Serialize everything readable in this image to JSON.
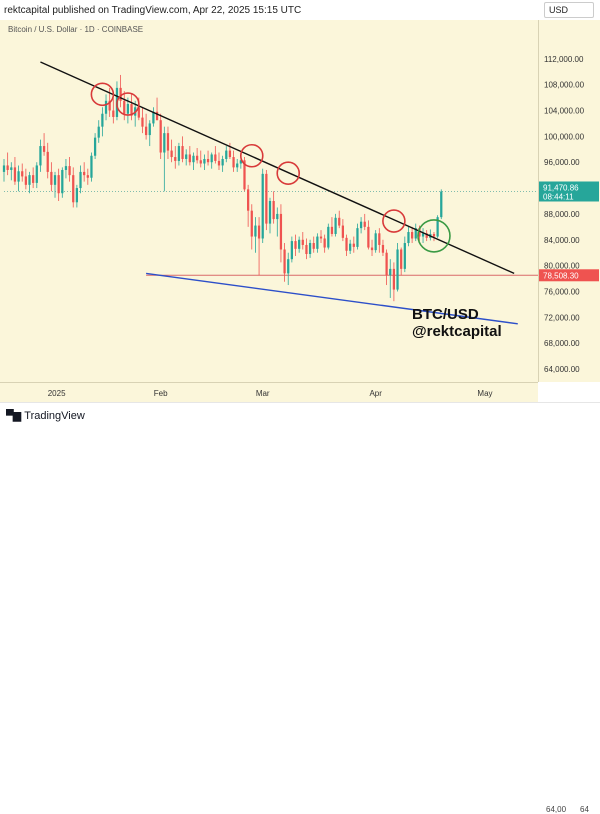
{
  "header": {
    "published_text": "rektcapital published on TradingView.com, Apr 22, 2025 15:15 UTC"
  },
  "chart_title": "Bitcoin / U.S. Dollar · 1D · COINBASE",
  "currency": "USD",
  "watermark": {
    "line1": "BTC/USD",
    "line2": "@rektcapital"
  },
  "footer": {
    "brand": "TradingView",
    "bottom_tick_a": "64,00",
    "bottom_tick_b": "64"
  },
  "colors": {
    "background": "#fbf6da",
    "up": "#26a69a",
    "down": "#ef5350",
    "trendline": "#111111",
    "support": "#2c4fc9",
    "hline": "#d96a6a",
    "circle_red": "#d83a3a",
    "circle_green": "#3a9a44",
    "price_label_bg": "#26a69a",
    "hline_label_bg": "#ef5350"
  },
  "chart_data": {
    "type": "candlestick",
    "title": "Bitcoin / U.S. Dollar · 1D · COINBASE",
    "ylim": [
      62000,
      118000
    ],
    "y_ticks": [
      "64,000.00",
      "68,000.00",
      "72,000.00",
      "76,000.00",
      "80,000.00",
      "84,000.00",
      "88,000.00",
      "96,000.00",
      "100,000.00",
      "104,000.00",
      "108,000.00",
      "112,000.00"
    ],
    "y_tick_values": [
      64000,
      68000,
      72000,
      76000,
      80000,
      84000,
      88000,
      96000,
      100000,
      104000,
      108000,
      112000
    ],
    "x_labels": [
      "2025",
      "Feb",
      "Mar",
      "Apr",
      "May"
    ],
    "x_label_days": [
      0,
      31,
      59,
      90,
      120
    ],
    "current_price": {
      "value": 91470.86,
      "label": "91,470.86",
      "countdown": "08:44:11"
    },
    "horizontal_level": {
      "value": 78508.3,
      "label": "78,508.30",
      "x_start_day": 27
    },
    "day_start": -12,
    "day_end": 134,
    "candles": [
      {
        "d": -12,
        "o": 94500,
        "h": 96500,
        "l": 93000,
        "c": 95500
      },
      {
        "d": -11,
        "o": 95500,
        "h": 97500,
        "l": 94000,
        "c": 94800
      },
      {
        "d": -10,
        "o": 94800,
        "h": 96000,
        "l": 93200,
        "c": 95200
      },
      {
        "d": -9,
        "o": 95200,
        "h": 96800,
        "l": 92500,
        "c": 93000
      },
      {
        "d": -8,
        "o": 93000,
        "h": 95500,
        "l": 91500,
        "c": 94600
      },
      {
        "d": -7,
        "o": 94600,
        "h": 95800,
        "l": 93000,
        "c": 93800
      },
      {
        "d": -6,
        "o": 93800,
        "h": 95000,
        "l": 91800,
        "c": 92500
      },
      {
        "d": -5,
        "o": 92500,
        "h": 94500,
        "l": 91200,
        "c": 94000
      },
      {
        "d": -4,
        "o": 94000,
        "h": 95200,
        "l": 92000,
        "c": 92800
      },
      {
        "d": -3,
        "o": 92800,
        "h": 96000,
        "l": 92000,
        "c": 95500
      },
      {
        "d": -2,
        "o": 95500,
        "h": 99500,
        "l": 94500,
        "c": 98500
      },
      {
        "d": -1,
        "o": 98500,
        "h": 100500,
        "l": 97000,
        "c": 97600
      },
      {
        "d": 0,
        "o": 97600,
        "h": 99000,
        "l": 93500,
        "c": 94500
      },
      {
        "d": 1,
        "o": 94500,
        "h": 96000,
        "l": 91500,
        "c": 92500
      },
      {
        "d": 2,
        "o": 92500,
        "h": 94500,
        "l": 90500,
        "c": 94000
      },
      {
        "d": 3,
        "o": 94000,
        "h": 95000,
        "l": 90000,
        "c": 91200
      },
      {
        "d": 4,
        "o": 91200,
        "h": 95200,
        "l": 90500,
        "c": 94800
      },
      {
        "d": 5,
        "o": 94800,
        "h": 96500,
        "l": 93500,
        "c": 95400
      },
      {
        "d": 6,
        "o": 95400,
        "h": 96800,
        "l": 93000,
        "c": 94000
      },
      {
        "d": 7,
        "o": 94000,
        "h": 95200,
        "l": 89000,
        "c": 89800
      },
      {
        "d": 8,
        "o": 89800,
        "h": 92500,
        "l": 89000,
        "c": 92000
      },
      {
        "d": 9,
        "o": 92000,
        "h": 95500,
        "l": 91200,
        "c": 94500
      },
      {
        "d": 10,
        "o": 94500,
        "h": 96000,
        "l": 93000,
        "c": 94000
      },
      {
        "d": 11,
        "o": 94000,
        "h": 95000,
        "l": 92500,
        "c": 93600
      },
      {
        "d": 12,
        "o": 93600,
        "h": 97500,
        "l": 93000,
        "c": 97000
      },
      {
        "d": 13,
        "o": 97000,
        "h": 100500,
        "l": 96500,
        "c": 99800
      },
      {
        "d": 14,
        "o": 99800,
        "h": 102500,
        "l": 99000,
        "c": 101500
      },
      {
        "d": 15,
        "o": 101500,
        "h": 104500,
        "l": 100000,
        "c": 103500
      },
      {
        "d": 16,
        "o": 103500,
        "h": 106500,
        "l": 102500,
        "c": 105500
      },
      {
        "d": 17,
        "o": 105500,
        "h": 107500,
        "l": 103000,
        "c": 104000
      },
      {
        "d": 18,
        "o": 104000,
        "h": 106000,
        "l": 102000,
        "c": 103000
      },
      {
        "d": 19,
        "o": 103000,
        "h": 108500,
        "l": 102500,
        "c": 107500
      },
      {
        "d": 20,
        "o": 107500,
        "h": 109500,
        "l": 104500,
        "c": 105500
      },
      {
        "d": 21,
        "o": 105500,
        "h": 107000,
        "l": 102500,
        "c": 103500
      },
      {
        "d": 22,
        "o": 103500,
        "h": 106000,
        "l": 102000,
        "c": 105000
      },
      {
        "d": 23,
        "o": 105000,
        "h": 106500,
        "l": 102500,
        "c": 103200
      },
      {
        "d": 24,
        "o": 103200,
        "h": 105500,
        "l": 101500,
        "c": 104500
      },
      {
        "d": 25,
        "o": 104500,
        "h": 106000,
        "l": 102500,
        "c": 102900
      },
      {
        "d": 26,
        "o": 102900,
        "h": 104500,
        "l": 100500,
        "c": 101500
      },
      {
        "d": 27,
        "o": 101500,
        "h": 103500,
        "l": 99500,
        "c": 100200
      },
      {
        "d": 28,
        "o": 100200,
        "h": 102500,
        "l": 98500,
        "c": 102000
      },
      {
        "d": 29,
        "o": 102000,
        "h": 104500,
        "l": 101500,
        "c": 103800
      },
      {
        "d": 30,
        "o": 103800,
        "h": 106000,
        "l": 102500,
        "c": 102500
      },
      {
        "d": 31,
        "o": 102500,
        "h": 103500,
        "l": 96500,
        "c": 97500
      },
      {
        "d": 32,
        "o": 97500,
        "h": 101500,
        "l": 91500,
        "c": 100500
      },
      {
        "d": 33,
        "o": 100500,
        "h": 101500,
        "l": 96500,
        "c": 97800
      },
      {
        "d": 34,
        "o": 97800,
        "h": 99500,
        "l": 96000,
        "c": 96800
      },
      {
        "d": 35,
        "o": 96800,
        "h": 98500,
        "l": 95000,
        "c": 96200
      },
      {
        "d": 36,
        "o": 96200,
        "h": 99000,
        "l": 95500,
        "c": 98500
      },
      {
        "d": 37,
        "o": 98500,
        "h": 100000,
        "l": 96000,
        "c": 96500
      },
      {
        "d": 38,
        "o": 96500,
        "h": 98000,
        "l": 95500,
        "c": 97200
      },
      {
        "d": 39,
        "o": 97200,
        "h": 98500,
        "l": 95500,
        "c": 96000
      },
      {
        "d": 40,
        "o": 96000,
        "h": 97500,
        "l": 94800,
        "c": 97000
      },
      {
        "d": 41,
        "o": 97000,
        "h": 98200,
        "l": 95800,
        "c": 96300
      },
      {
        "d": 42,
        "o": 96300,
        "h": 97800,
        "l": 95200,
        "c": 95800
      },
      {
        "d": 43,
        "o": 95800,
        "h": 97200,
        "l": 94800,
        "c": 96500
      },
      {
        "d": 44,
        "o": 96500,
        "h": 97800,
        "l": 95500,
        "c": 96000
      },
      {
        "d": 45,
        "o": 96000,
        "h": 97500,
        "l": 95000,
        "c": 97200
      },
      {
        "d": 46,
        "o": 97200,
        "h": 98500,
        "l": 95800,
        "c": 96200
      },
      {
        "d": 47,
        "o": 96200,
        "h": 97500,
        "l": 94800,
        "c": 95500
      },
      {
        "d": 48,
        "o": 95500,
        "h": 97000,
        "l": 94500,
        "c": 96500
      },
      {
        "d": 49,
        "o": 96500,
        "h": 98500,
        "l": 96000,
        "c": 97800
      },
      {
        "d": 50,
        "o": 97800,
        "h": 99000,
        "l": 96500,
        "c": 96800
      },
      {
        "d": 51,
        "o": 96800,
        "h": 97800,
        "l": 94500,
        "c": 95200
      },
      {
        "d": 52,
        "o": 95200,
        "h": 96500,
        "l": 94500,
        "c": 95800
      },
      {
        "d": 53,
        "o": 95800,
        "h": 96800,
        "l": 95000,
        "c": 96300
      },
      {
        "d": 54,
        "o": 96300,
        "h": 96800,
        "l": 91500,
        "c": 91800
      },
      {
        "d": 55,
        "o": 91800,
        "h": 92500,
        "l": 86000,
        "c": 88500
      },
      {
        "d": 56,
        "o": 88500,
        "h": 89500,
        "l": 82500,
        "c": 84500
      },
      {
        "d": 57,
        "o": 84500,
        "h": 87500,
        "l": 82000,
        "c": 86200
      },
      {
        "d": 58,
        "o": 86200,
        "h": 87500,
        "l": 78500,
        "c": 84200
      },
      {
        "d": 59,
        "o": 84200,
        "h": 95000,
        "l": 83500,
        "c": 94200
      },
      {
        "d": 60,
        "o": 94200,
        "h": 94800,
        "l": 85500,
        "c": 86500
      },
      {
        "d": 61,
        "o": 86500,
        "h": 90500,
        "l": 85000,
        "c": 90000
      },
      {
        "d": 62,
        "o": 90000,
        "h": 91500,
        "l": 86500,
        "c": 87200
      },
      {
        "d": 63,
        "o": 87200,
        "h": 89000,
        "l": 84500,
        "c": 88000
      },
      {
        "d": 64,
        "o": 88000,
        "h": 89500,
        "l": 80500,
        "c": 82500
      },
      {
        "d": 65,
        "o": 82500,
        "h": 83500,
        "l": 77500,
        "c": 78800
      },
      {
        "d": 66,
        "o": 78800,
        "h": 82000,
        "l": 77000,
        "c": 81000
      },
      {
        "d": 67,
        "o": 81000,
        "h": 84500,
        "l": 80500,
        "c": 83800
      },
      {
        "d": 68,
        "o": 83800,
        "h": 84800,
        "l": 81500,
        "c": 82600
      },
      {
        "d": 69,
        "o": 82600,
        "h": 84500,
        "l": 82000,
        "c": 84000
      },
      {
        "d": 70,
        "o": 84000,
        "h": 85200,
        "l": 82500,
        "c": 83200
      },
      {
        "d": 71,
        "o": 83200,
        "h": 84200,
        "l": 81000,
        "c": 81800
      },
      {
        "d": 72,
        "o": 81800,
        "h": 84000,
        "l": 81200,
        "c": 83500
      },
      {
        "d": 73,
        "o": 83500,
        "h": 84500,
        "l": 82000,
        "c": 82600
      },
      {
        "d": 74,
        "o": 82600,
        "h": 85000,
        "l": 82000,
        "c": 84500
      },
      {
        "d": 75,
        "o": 84500,
        "h": 85500,
        "l": 83500,
        "c": 84200
      },
      {
        "d": 76,
        "o": 84200,
        "h": 84800,
        "l": 82000,
        "c": 82800
      },
      {
        "d": 77,
        "o": 82800,
        "h": 86500,
        "l": 82500,
        "c": 86000
      },
      {
        "d": 78,
        "o": 86000,
        "h": 87500,
        "l": 84500,
        "c": 84900
      },
      {
        "d": 79,
        "o": 84900,
        "h": 88000,
        "l": 84500,
        "c": 87400
      },
      {
        "d": 80,
        "o": 87400,
        "h": 88500,
        "l": 85800,
        "c": 86200
      },
      {
        "d": 81,
        "o": 86200,
        "h": 87200,
        "l": 83800,
        "c": 84300
      },
      {
        "d": 82,
        "o": 84300,
        "h": 84800,
        "l": 81500,
        "c": 82300
      },
      {
        "d": 83,
        "o": 82300,
        "h": 84000,
        "l": 81800,
        "c": 83400
      },
      {
        "d": 84,
        "o": 83400,
        "h": 84500,
        "l": 82000,
        "c": 82900
      },
      {
        "d": 85,
        "o": 82900,
        "h": 86500,
        "l": 82500,
        "c": 85800
      },
      {
        "d": 86,
        "o": 85800,
        "h": 87500,
        "l": 85000,
        "c": 86800
      },
      {
        "d": 87,
        "o": 86800,
        "h": 88000,
        "l": 85500,
        "c": 86000
      },
      {
        "d": 88,
        "o": 86000,
        "h": 87000,
        "l": 82500,
        "c": 82800
      },
      {
        "d": 89,
        "o": 82800,
        "h": 84000,
        "l": 81500,
        "c": 82400
      },
      {
        "d": 90,
        "o": 82400,
        "h": 85500,
        "l": 82000,
        "c": 85000
      },
      {
        "d": 91,
        "o": 85000,
        "h": 85800,
        "l": 82000,
        "c": 83200
      },
      {
        "d": 92,
        "o": 83200,
        "h": 84000,
        "l": 81500,
        "c": 82000
      },
      {
        "d": 93,
        "o": 82000,
        "h": 82500,
        "l": 77000,
        "c": 78500
      },
      {
        "d": 94,
        "o": 78500,
        "h": 81000,
        "l": 75000,
        "c": 79500
      },
      {
        "d": 95,
        "o": 79500,
        "h": 80500,
        "l": 74500,
        "c": 76300
      },
      {
        "d": 96,
        "o": 76300,
        "h": 83500,
        "l": 76000,
        "c": 82500
      },
      {
        "d": 97,
        "o": 82500,
        "h": 82800,
        "l": 78500,
        "c": 79500
      },
      {
        "d": 98,
        "o": 79500,
        "h": 84500,
        "l": 79000,
        "c": 83500
      },
      {
        "d": 99,
        "o": 83500,
        "h": 86000,
        "l": 83000,
        "c": 85200
      },
      {
        "d": 100,
        "o": 85200,
        "h": 86000,
        "l": 83500,
        "c": 84200
      },
      {
        "d": 101,
        "o": 84200,
        "h": 86500,
        "l": 83800,
        "c": 85800
      },
      {
        "d": 102,
        "o": 85800,
        "h": 86200,
        "l": 83800,
        "c": 84500
      },
      {
        "d": 103,
        "o": 84500,
        "h": 85800,
        "l": 83500,
        "c": 85000
      },
      {
        "d": 104,
        "o": 85000,
        "h": 85500,
        "l": 83800,
        "c": 84300
      },
      {
        "d": 105,
        "o": 84300,
        "h": 85600,
        "l": 83900,
        "c": 84900
      },
      {
        "d": 106,
        "o": 84900,
        "h": 85200,
        "l": 83800,
        "c": 84500
      },
      {
        "d": 107,
        "o": 84500,
        "h": 87800,
        "l": 84300,
        "c": 87500
      },
      {
        "d": 108,
        "o": 87500,
        "h": 91800,
        "l": 87200,
        "c": 91470
      }
    ],
    "trendline": {
      "d1": -2,
      "p1": 111500,
      "d2": 128,
      "p2": 78800
    },
    "support_line": {
      "d1": 27,
      "p1": 78800,
      "d2": 129,
      "p2": 71000
    },
    "circles": [
      {
        "d": 15,
        "p": 106500,
        "color": "red"
      },
      {
        "d": 22,
        "p": 105000,
        "color": "red"
      },
      {
        "d": 56,
        "p": 97000,
        "color": "red"
      },
      {
        "d": 66,
        "p": 94300,
        "color": "red"
      },
      {
        "d": 95,
        "p": 86900,
        "color": "red"
      },
      {
        "d": 106,
        "p": 84600,
        "color": "green"
      }
    ]
  }
}
